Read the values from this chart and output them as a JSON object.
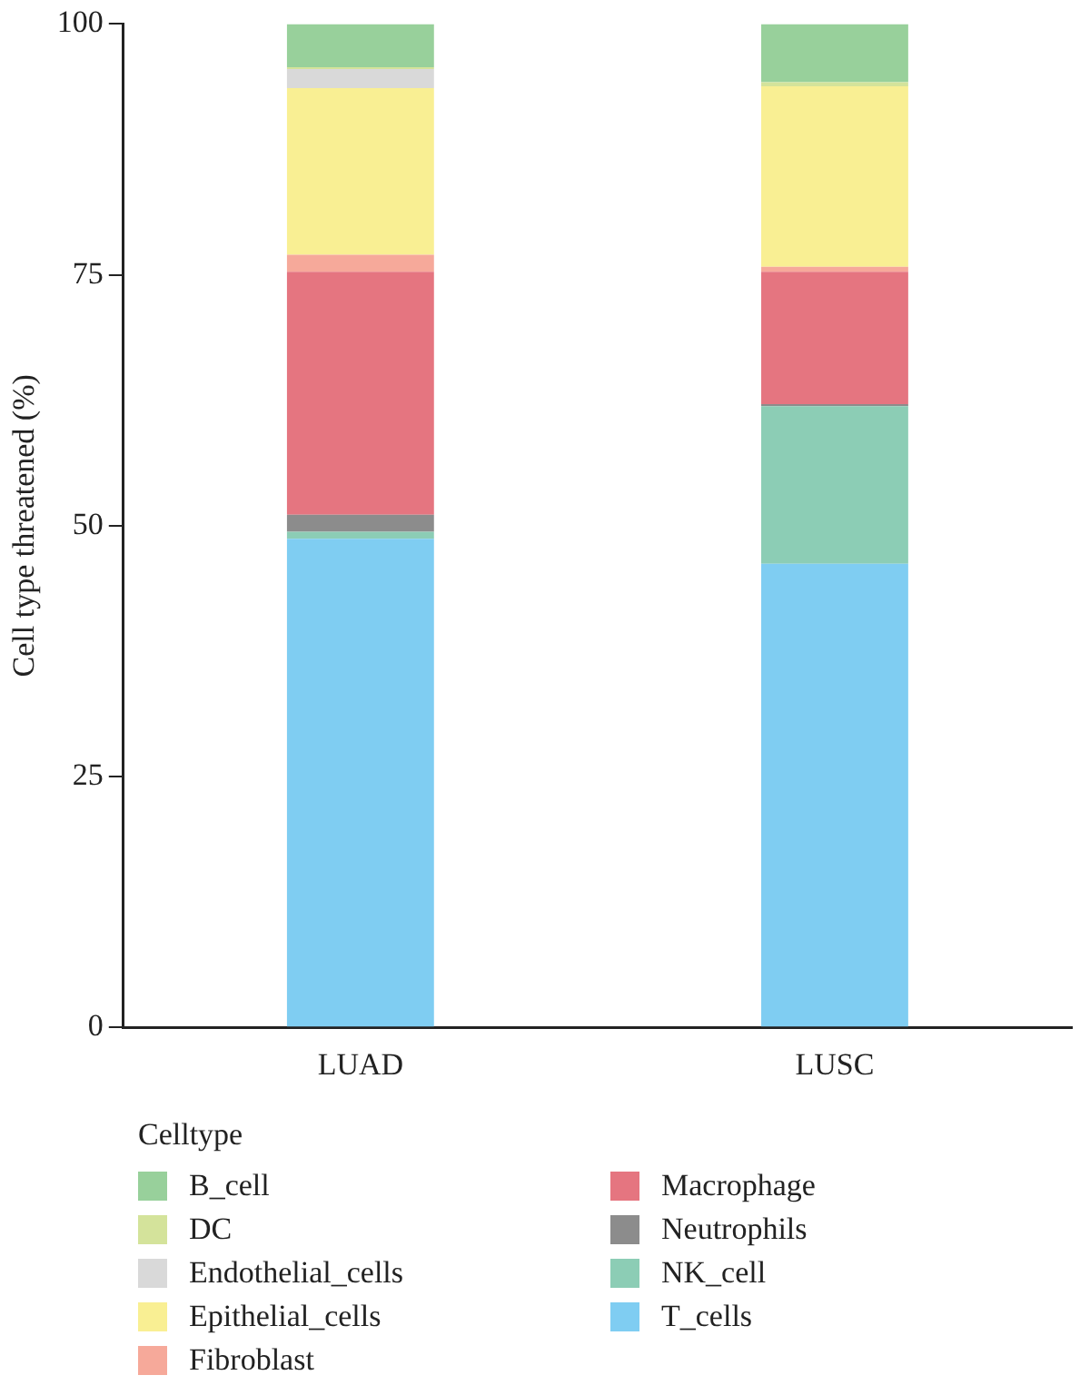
{
  "chart_data": {
    "type": "bar",
    "stacked": true,
    "ylabel": "Cell type threatened (%)",
    "legend_title": "Celltype",
    "legend": "bottom",
    "grid": false,
    "categories": [
      "LUAD",
      "LUSC"
    ],
    "ylim": [
      0,
      100
    ],
    "yticks": [
      0,
      25,
      50,
      75,
      100
    ],
    "series": [
      {
        "name": "T_cells",
        "color": "#7fcdf2",
        "values": [
          48.7,
          46.2
        ]
      },
      {
        "name": "NK_cell",
        "color": "#8ccdb5",
        "values": [
          0.7,
          15.7
        ]
      },
      {
        "name": "Neutrophils",
        "color": "#8c8c8c",
        "values": [
          1.7,
          0.2
        ]
      },
      {
        "name": "Macrophage",
        "color": "#e57580",
        "values": [
          24.2,
          13.2
        ]
      },
      {
        "name": "Fibroblast",
        "color": "#f6a99a",
        "values": [
          1.7,
          0.5
        ]
      },
      {
        "name": "Epithelial_cells",
        "color": "#f9ef93",
        "values": [
          16.6,
          18.0
        ]
      },
      {
        "name": "Endothelial_cells",
        "color": "#d9d9d9",
        "values": [
          1.9,
          null
        ]
      },
      {
        "name": "DC",
        "color": "#d4e39b",
        "values": [
          0.2,
          0.4
        ]
      },
      {
        "name": "B_cell",
        "color": "#98d09b",
        "values": [
          4.3,
          5.8
        ]
      }
    ]
  }
}
